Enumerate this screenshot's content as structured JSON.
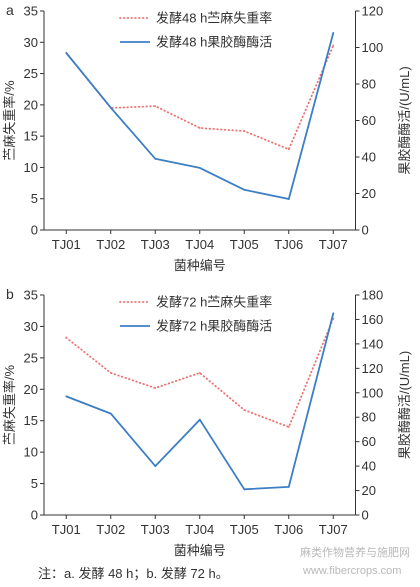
{
  "figure": {
    "caption": "注：a. 发酵 48 h；b. 发酵 72 h。",
    "watermark": [
      "麻类作物营养与施肥网",
      "www.fibercrops.com"
    ]
  },
  "colors": {
    "weight_loss": "#ec7372",
    "pectinase_activity": "#3c7ec5",
    "axis": "#333333"
  },
  "chart_data": [
    {
      "panel": "a",
      "type": "line",
      "categories": [
        "TJ01",
        "TJ02",
        "TJ03",
        "TJ04",
        "TJ05",
        "TJ06",
        "TJ07"
      ],
      "xlabel": "菌种编号",
      "ylabel": "苎麻失重率/%",
      "ylabel_right": "果胶酶酶活/(U/mL)",
      "ylim": [
        0,
        35
      ],
      "yticks": [
        0,
        5,
        10,
        15,
        20,
        25,
        30,
        35
      ],
      "ylim_right": [
        0,
        120
      ],
      "yticks_right": [
        0,
        20,
        40,
        60,
        80,
        100,
        120
      ],
      "grid": false,
      "legend_position": "top-center",
      "series": [
        {
          "name": "发酵48 h苎麻失重率",
          "y_axis": "left",
          "line_style": "dotted",
          "color": "#ec7372",
          "values": [
            28.3,
            19.5,
            19.8,
            16.3,
            15.8,
            12.9,
            29.5
          ]
        },
        {
          "name": "发酵48 h果胶酶酶活",
          "y_axis": "right",
          "line_style": "solid",
          "color": "#3c7ec5",
          "values": [
            97,
            67,
            39,
            34,
            22,
            17,
            108
          ]
        }
      ]
    },
    {
      "panel": "b",
      "type": "line",
      "categories": [
        "TJ01",
        "TJ02",
        "TJ03",
        "TJ04",
        "TJ05",
        "TJ06",
        "TJ07"
      ],
      "xlabel": "菌种编号",
      "ylabel": "苎麻失重率/%",
      "ylabel_right": "果胶酶酶活/(U/mL)",
      "ylim": [
        0,
        35
      ],
      "yticks": [
        0,
        5,
        10,
        15,
        20,
        25,
        30,
        35
      ],
      "ylim_right": [
        0,
        180
      ],
      "yticks_right": [
        0,
        20,
        40,
        60,
        80,
        100,
        120,
        140,
        160,
        180
      ],
      "grid": false,
      "legend_position": "top-center",
      "series": [
        {
          "name": "发酵72 h苎麻失重率",
          "y_axis": "left",
          "line_style": "dotted",
          "color": "#ec7372",
          "values": [
            28.2,
            22.6,
            20.2,
            22.6,
            16.7,
            14.0,
            31.3
          ]
        },
        {
          "name": "发酵72 h果胶酶酶活",
          "y_axis": "right",
          "line_style": "solid",
          "color": "#3c7ec5",
          "values": [
            97,
            83,
            40,
            78,
            21,
            23,
            165
          ]
        }
      ]
    }
  ]
}
